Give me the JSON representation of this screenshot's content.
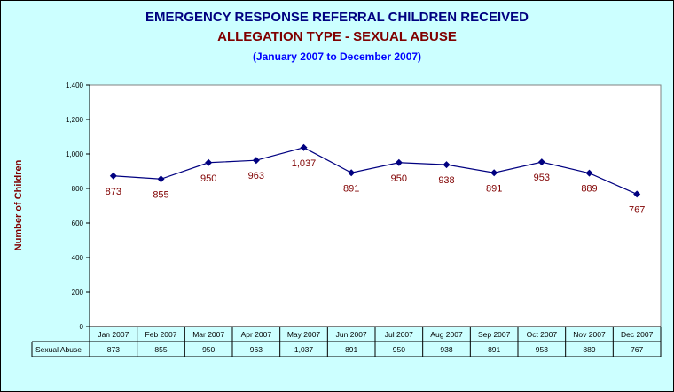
{
  "title": "EMERGENCY RESPONSE REFERRAL CHILDREN RECEIVED",
  "subtitle": "ALLEGATION TYPE - SEXUAL ABUSE",
  "period": "(January 2007 to December 2007)",
  "colors": {
    "background": "#ccffff",
    "plot": "#ffffff",
    "line": "#000080",
    "labels": "#800000"
  },
  "chart_data": {
    "type": "line",
    "categories": [
      "Jan 2007",
      "Feb 2007",
      "Mar 2007",
      "Apr 2007",
      "May 2007",
      "Jun 2007",
      "Jul 2007",
      "Aug 2007",
      "Sep 2007",
      "Oct 2007",
      "Nov 2007",
      "Dec 2007"
    ],
    "series": [
      {
        "name": "Sexual Abuse",
        "values": [
          873,
          855,
          950,
          963,
          1037,
          891,
          950,
          938,
          891,
          953,
          889,
          767
        ],
        "labels": [
          "873",
          "855",
          "950",
          "963",
          "1,037",
          "891",
          "950",
          "938",
          "891",
          "953",
          "889",
          "767"
        ]
      }
    ],
    "ylabel": "Number of Children",
    "ylim": [
      0,
      1400
    ],
    "yticks": [
      0,
      200,
      400,
      600,
      800,
      1000,
      1200,
      1400
    ],
    "ytick_labels": [
      "0",
      "200",
      "400",
      "600",
      "800",
      "1,000",
      "1,200",
      "1,400"
    ],
    "grid": false,
    "data_table": true
  }
}
